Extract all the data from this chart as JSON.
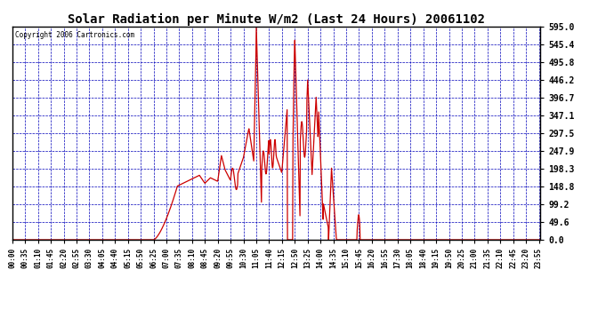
{
  "title": "Solar Radiation per Minute W/m2 (Last 24 Hours) 20061102",
  "copyright": "Copyright 2006 Cartronics.com",
  "yticks": [
    0.0,
    49.6,
    99.2,
    148.8,
    198.3,
    247.9,
    297.5,
    347.1,
    396.7,
    446.2,
    495.8,
    545.4,
    595.0
  ],
  "ymax": 595.0,
  "ymin": 0.0,
  "line_color": "#cc0000",
  "bg_color": "#ffffff",
  "plot_bg_color": "#ffffff",
  "grid_color": "#0000bb",
  "border_color": "#000000",
  "title_color": "#000000",
  "x_tick_interval_minutes": 35,
  "figwidth": 6.9,
  "figheight": 3.75,
  "dpi": 100
}
